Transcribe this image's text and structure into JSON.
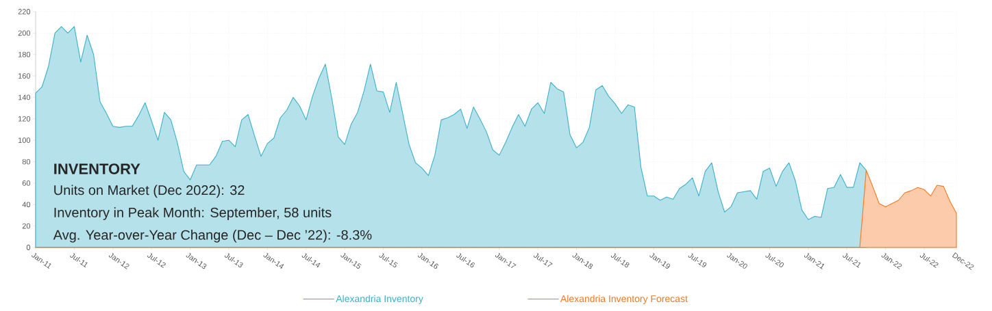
{
  "chart_data": {
    "type": "area",
    "title": "INVENTORY",
    "annotations": [
      "Units on Market (Dec 2022): 32",
      "Inventory in Peak Month: September, 58 units",
      "Avg. Year-over-Year Change (Dec – Dec ’22): -8.3%"
    ],
    "x": [
      "2011-01",
      "2011-02",
      "2011-03",
      "2011-04",
      "2011-05",
      "2011-06",
      "2011-07",
      "2011-08",
      "2011-09",
      "2011-10",
      "2011-11",
      "2011-12",
      "2012-01",
      "2012-02",
      "2012-03",
      "2012-04",
      "2012-05",
      "2012-06",
      "2012-07",
      "2012-08",
      "2012-09",
      "2012-10",
      "2012-11",
      "2012-12",
      "2013-01",
      "2013-02",
      "2013-03",
      "2013-04",
      "2013-05",
      "2013-06",
      "2013-07",
      "2013-08",
      "2013-09",
      "2013-10",
      "2013-11",
      "2013-12",
      "2014-01",
      "2014-02",
      "2014-03",
      "2014-04",
      "2014-05",
      "2014-06",
      "2014-07",
      "2014-08",
      "2014-09",
      "2014-10",
      "2014-11",
      "2014-12",
      "2015-01",
      "2015-02",
      "2015-03",
      "2015-04",
      "2015-05",
      "2015-06",
      "2015-07",
      "2015-08",
      "2015-09",
      "2015-10",
      "2015-11",
      "2015-12",
      "2016-01",
      "2016-02",
      "2016-03",
      "2016-04",
      "2016-05",
      "2016-06",
      "2016-07",
      "2016-08",
      "2016-09",
      "2016-10",
      "2016-11",
      "2016-12",
      "2017-01",
      "2017-02",
      "2017-03",
      "2017-04",
      "2017-05",
      "2017-06",
      "2017-07",
      "2017-08",
      "2017-09",
      "2017-10",
      "2017-11",
      "2017-12",
      "2018-01",
      "2018-02",
      "2018-03",
      "2018-04",
      "2018-05",
      "2018-06",
      "2018-07",
      "2018-08",
      "2018-09",
      "2018-10",
      "2018-11",
      "2018-12",
      "2019-01",
      "2019-02",
      "2019-03",
      "2019-04",
      "2019-05",
      "2019-06",
      "2019-07",
      "2019-08",
      "2019-09",
      "2019-10",
      "2019-11",
      "2019-12",
      "2020-01",
      "2020-02",
      "2020-03",
      "2020-04",
      "2020-05",
      "2020-06",
      "2020-07",
      "2020-08",
      "2020-09",
      "2020-10",
      "2020-11",
      "2020-12",
      "2021-01",
      "2021-02",
      "2021-03",
      "2021-04",
      "2021-05",
      "2021-06",
      "2021-07",
      "2021-08",
      "2021-09",
      "2021-10",
      "2021-11",
      "2021-12",
      "2022-01",
      "2022-02",
      "2022-03",
      "2022-04",
      "2022-05",
      "2022-06",
      "2022-07",
      "2022-08",
      "2022-09",
      "2022-10",
      "2022-11",
      "2022-12"
    ],
    "series": [
      {
        "name": "Alexandria Inventory",
        "color": "#3bb0c9",
        "values": [
          144,
          150,
          169,
          200,
          206,
          200,
          206,
          173,
          198,
          180,
          136,
          125,
          113,
          112,
          113,
          113,
          123,
          135,
          118,
          100,
          126,
          119,
          98,
          71,
          63,
          77,
          77,
          77,
          85,
          99,
          100,
          94,
          119,
          124,
          104,
          85,
          97,
          102,
          121,
          128,
          140,
          132,
          119,
          141,
          158,
          171,
          139,
          103,
          96,
          115,
          126,
          146,
          171,
          146,
          145,
          126,
          154,
          125,
          96,
          79,
          74,
          67,
          86,
          119,
          121,
          124,
          129,
          111,
          131,
          120,
          108,
          91,
          86,
          98,
          112,
          124,
          113,
          129,
          135,
          125,
          154,
          148,
          145,
          105,
          93,
          98,
          112,
          147,
          151,
          141,
          134,
          125,
          133,
          131,
          75,
          48,
          48,
          44,
          47,
          45,
          55,
          59,
          65,
          48,
          71,
          79,
          52,
          33,
          38,
          51,
          52,
          53,
          45,
          71,
          74,
          57,
          71,
          79,
          62,
          35,
          26,
          29,
          28,
          55,
          56,
          68,
          56,
          56,
          79,
          72,
          null,
          null,
          null,
          null,
          null,
          null,
          null,
          null,
          null,
          null,
          null,
          null,
          null,
          null
        ]
      },
      {
        "name": "Alexandria Inventory Forecast",
        "color": "#f47721",
        "values": [
          0,
          0,
          0,
          0,
          0,
          0,
          0,
          0,
          0,
          0,
          0,
          0,
          0,
          0,
          0,
          0,
          0,
          0,
          0,
          0,
          0,
          0,
          0,
          0,
          0,
          0,
          0,
          0,
          0,
          0,
          0,
          0,
          0,
          0,
          0,
          0,
          0,
          0,
          0,
          0,
          0,
          0,
          0,
          0,
          0,
          0,
          0,
          0,
          0,
          0,
          0,
          0,
          0,
          0,
          0,
          0,
          0,
          0,
          0,
          0,
          0,
          0,
          0,
          0,
          0,
          0,
          0,
          0,
          0,
          0,
          0,
          0,
          0,
          0,
          0,
          0,
          0,
          0,
          0,
          0,
          0,
          0,
          0,
          0,
          0,
          0,
          0,
          0,
          0,
          0,
          0,
          0,
          0,
          0,
          0,
          0,
          0,
          0,
          0,
          0,
          0,
          0,
          0,
          0,
          0,
          0,
          0,
          0,
          0,
          0,
          0,
          0,
          0,
          0,
          0,
          0,
          0,
          0,
          0,
          0,
          0,
          0,
          0,
          0,
          0,
          0,
          0,
          0,
          0,
          72,
          57,
          41,
          38,
          41,
          44,
          51,
          53,
          56,
          54,
          48,
          58,
          57,
          43,
          32
        ]
      }
    ],
    "xlim": [
      "2011-01",
      "2022-12"
    ],
    "xticks": [
      {
        "value": "2011-01",
        "label": "Jan-11"
      },
      {
        "value": "2011-07",
        "label": "Jul-11"
      },
      {
        "value": "2012-01",
        "label": "Jan-12"
      },
      {
        "value": "2012-07",
        "label": "Jul-12"
      },
      {
        "value": "2013-01",
        "label": "Jan-13"
      },
      {
        "value": "2013-07",
        "label": "Jul-13"
      },
      {
        "value": "2014-01",
        "label": "Jan-14"
      },
      {
        "value": "2014-07",
        "label": "Jul-14"
      },
      {
        "value": "2015-01",
        "label": "Jan-15"
      },
      {
        "value": "2015-07",
        "label": "Jul-15"
      },
      {
        "value": "2016-01",
        "label": "Jan-16"
      },
      {
        "value": "2016-07",
        "label": "Jul-16"
      },
      {
        "value": "2017-01",
        "label": "Jan-17"
      },
      {
        "value": "2017-07",
        "label": "Jul-17"
      },
      {
        "value": "2018-01",
        "label": "Jan-18"
      },
      {
        "value": "2018-07",
        "label": "Jul-18"
      },
      {
        "value": "2019-01",
        "label": "Jan-19"
      },
      {
        "value": "2019-07",
        "label": "Jul-19"
      },
      {
        "value": "2020-01",
        "label": "Jan-20"
      },
      {
        "value": "2020-07",
        "label": "Jul-20"
      },
      {
        "value": "2021-01",
        "label": "Jan-21"
      },
      {
        "value": "2021-07",
        "label": "Jul-21"
      },
      {
        "value": "2022-01",
        "label": "Jan-22"
      },
      {
        "value": "2022-07",
        "label": "Jul-22"
      },
      {
        "value": "2022-12",
        "label": "Dec-22"
      }
    ],
    "ylim": [
      0,
      220
    ],
    "yticks": [
      0,
      20,
      40,
      60,
      80,
      100,
      120,
      140,
      160,
      180,
      200,
      220
    ],
    "grid": true,
    "legend": "bottom"
  }
}
